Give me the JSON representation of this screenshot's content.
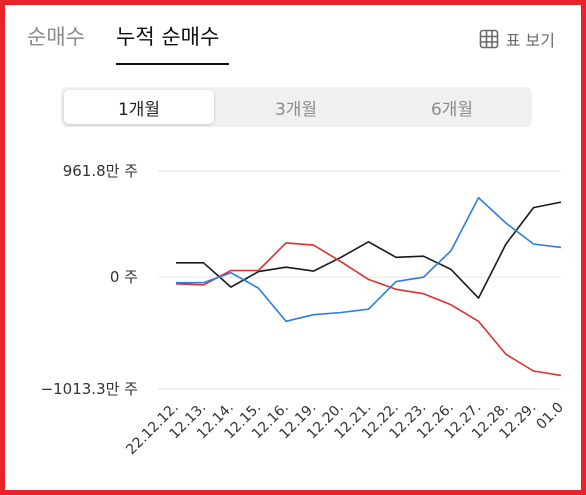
{
  "tabs": [
    {
      "label": "순매수",
      "active": false
    },
    {
      "label": "누적 순매수",
      "active": true
    }
  ],
  "table_view": {
    "label": "표 보기",
    "icon": "grid-icon"
  },
  "periods": [
    {
      "label": "1개월",
      "active": true
    },
    {
      "label": "3개월",
      "active": false
    },
    {
      "label": "6개월",
      "active": false
    }
  ],
  "chart_data": {
    "type": "line",
    "x": [
      "22.12.12.",
      "12.13.",
      "12.14.",
      "12.15.",
      "12.16.",
      "12.19.",
      "12.20.",
      "12.21.",
      "12.22.",
      "12.23.",
      "12.26.",
      "12.27.",
      "12.28.",
      "12.29.",
      "01.0"
    ],
    "y_ticks": [
      {
        "value": 961.8,
        "label": "961.8만 주"
      },
      {
        "value": 0,
        "label": "0 주"
      },
      {
        "value": -1013.3,
        "label": "−1013.3만 주"
      }
    ],
    "ylim": [
      -1013.3,
      961.8
    ],
    "series": [
      {
        "color": "#1a1a1a",
        "points": [
          [
            0,
            130
          ],
          [
            1,
            130
          ],
          [
            2,
            -90
          ],
          [
            3,
            50
          ],
          [
            4,
            90
          ],
          [
            5,
            55
          ],
          [
            6,
            180
          ],
          [
            7,
            320
          ],
          [
            8,
            180
          ],
          [
            9,
            190
          ],
          [
            10,
            70
          ],
          [
            11,
            -190
          ],
          [
            12,
            300
          ],
          [
            13,
            630
          ],
          [
            14,
            680
          ]
        ]
      },
      {
        "color": "#e03030",
        "points": [
          [
            0,
            -60
          ],
          [
            1,
            -70
          ],
          [
            2,
            60
          ],
          [
            3,
            60
          ],
          [
            4,
            310
          ],
          [
            5,
            290
          ],
          [
            6,
            140
          ],
          [
            7,
            -20
          ],
          [
            8,
            -110
          ],
          [
            9,
            -150
          ],
          [
            10,
            -250
          ],
          [
            11,
            -400
          ],
          [
            12,
            -700
          ],
          [
            13,
            -850
          ],
          [
            14,
            -890
          ]
        ]
      },
      {
        "color": "#2a7de1",
        "points": [
          [
            0,
            -50
          ],
          [
            1,
            -50
          ],
          [
            2,
            40
          ],
          [
            3,
            -100
          ],
          [
            4,
            -400
          ],
          [
            5,
            -340
          ],
          [
            6,
            -320
          ],
          [
            7,
            -290
          ],
          [
            8,
            -40
          ],
          [
            9,
            0
          ],
          [
            10,
            240
          ],
          [
            11,
            720
          ],
          [
            12,
            490
          ],
          [
            13,
            300
          ],
          [
            14,
            270
          ]
        ]
      }
    ],
    "grid": true
  }
}
